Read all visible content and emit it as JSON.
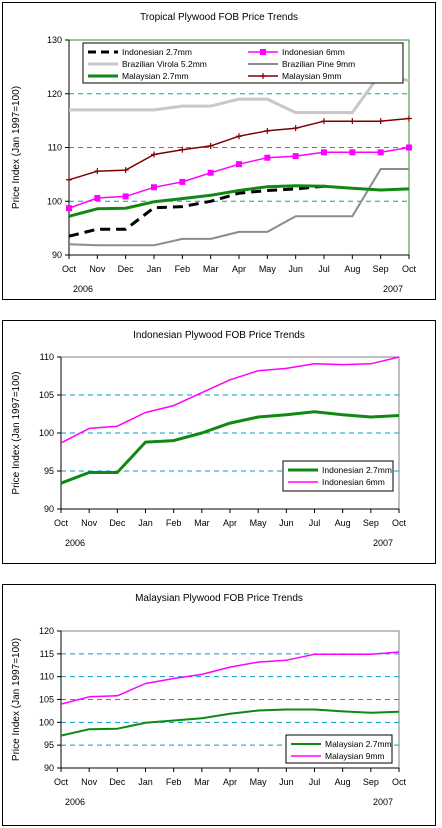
{
  "chart_data": [
    {
      "type": "line",
      "title": "Tropical Plywood FOB Price Trends",
      "ylabel": "Price Index (Jan 1997=100)",
      "xlabel": "",
      "x": [
        "Oct",
        "Nov",
        "Dec",
        "Jan",
        "Feb",
        "Mar",
        "Apr",
        "May",
        "Jun",
        "Jul",
        "Aug",
        "Sep",
        "Oct"
      ],
      "year_labels": [
        "2006",
        "2007"
      ],
      "ylim": [
        90,
        130
      ],
      "yticks": [
        90,
        100,
        110,
        120,
        130
      ],
      "grid": "dashed horizontal",
      "legend_position": "top",
      "plot_background": "#ffffff",
      "plot_border_color": "#2e8b2e",
      "series": [
        {
          "name": "Indonesian 2.7mm",
          "color": "#000000",
          "style": "dashed",
          "width": 3,
          "marker": "none",
          "values": [
            93.5,
            94.8,
            94.8,
            98.8,
            99.0,
            100.0,
            101.5,
            102.0,
            102.3,
            102.8,
            null,
            null,
            null
          ]
        },
        {
          "name": "Indonesian 6mm",
          "color": "#ff00ff",
          "style": "solid",
          "width": 1.5,
          "marker": "square",
          "values": [
            98.7,
            100.6,
            100.9,
            102.6,
            103.6,
            105.3,
            106.9,
            108.1,
            108.4,
            109.1,
            109.1,
            109.1,
            110.0
          ]
        },
        {
          "name": "Brazilian Virola 5.2mm",
          "color": "#c8c8c8",
          "style": "solid",
          "width": 3,
          "marker": "none",
          "values": [
            117.0,
            117.0,
            117.0,
            117.0,
            117.7,
            117.7,
            119.0,
            119.0,
            116.5,
            116.5,
            116.5,
            123.8,
            122.4
          ]
        },
        {
          "name": "Brazilian Pine 9mm",
          "color": "#8c8c8c",
          "style": "solid",
          "width": 2,
          "marker": "none",
          "values": [
            92.0,
            91.8,
            91.8,
            91.8,
            93.0,
            93.0,
            94.3,
            94.3,
            97.2,
            97.2,
            97.2,
            106.0,
            106.0
          ]
        },
        {
          "name": "Malaysian 2.7mm",
          "color": "#118811",
          "style": "solid",
          "width": 3,
          "marker": "none",
          "values": [
            97.2,
            98.6,
            98.7,
            99.9,
            100.5,
            101.1,
            102.0,
            102.7,
            102.9,
            102.8,
            102.4,
            102.1,
            102.3
          ]
        },
        {
          "name": "Malaysian 9mm",
          "color": "#800000",
          "style": "solid",
          "width": 1.5,
          "marker": "plus",
          "values": [
            104.0,
            105.6,
            105.8,
            108.7,
            109.6,
            110.3,
            112.1,
            113.1,
            113.6,
            114.9,
            114.9,
            114.9,
            115.4
          ]
        }
      ]
    },
    {
      "type": "line",
      "title": "Indonesian Plywood FOB Price Trends",
      "ylabel": "Price Index (Jan 1997=100)",
      "xlabel": "",
      "x": [
        "Oct",
        "Nov",
        "Dec",
        "Jan",
        "Feb",
        "Mar",
        "Apr",
        "May",
        "Jun",
        "Jul",
        "Aug",
        "Sep",
        "Oct"
      ],
      "year_labels": [
        "2006",
        "2007"
      ],
      "ylim": [
        90,
        110
      ],
      "yticks": [
        90,
        95,
        100,
        105,
        110
      ],
      "grid": "dashed horizontal",
      "legend_position": "bottom-right",
      "series": [
        {
          "name": "Indonesian 2.7mm",
          "color": "#118811",
          "width": 3,
          "values": [
            93.4,
            94.8,
            94.8,
            98.8,
            99.0,
            100.0,
            101.3,
            102.1,
            102.4,
            102.8,
            102.4,
            102.1,
            102.3
          ]
        },
        {
          "name": "Indonesian 6mm",
          "color": "#ff00ff",
          "width": 1.5,
          "values": [
            98.7,
            100.6,
            100.9,
            102.7,
            103.6,
            105.3,
            107.0,
            108.2,
            108.5,
            109.1,
            109.0,
            109.1,
            110.0
          ]
        }
      ]
    },
    {
      "type": "line",
      "title": "Malaysian Plywood FOB Price Trends",
      "ylabel": "Price Index (Jan 1997=100)",
      "xlabel": "",
      "x": [
        "Oct",
        "Nov",
        "Dec",
        "Jan",
        "Feb",
        "Mar",
        "Apr",
        "May",
        "Jun",
        "Jul",
        "Aug",
        "Sep",
        "Oct"
      ],
      "year_labels": [
        "2006",
        "2007"
      ],
      "ylim": [
        90,
        120
      ],
      "yticks": [
        90,
        95,
        100,
        105,
        110,
        115,
        120
      ],
      "grid": "dashed horizontal",
      "legend_position": "bottom-right",
      "series": [
        {
          "name": "Malaysian 2.7mm",
          "color": "#118811",
          "width": 2,
          "values": [
            97.1,
            98.5,
            98.6,
            99.9,
            100.4,
            100.9,
            101.9,
            102.6,
            102.8,
            102.8,
            102.4,
            102.1,
            102.3
          ]
        },
        {
          "name": "Malaysian 9mm",
          "color": "#ff00ff",
          "width": 1.5,
          "values": [
            104.0,
            105.6,
            105.8,
            108.5,
            109.6,
            110.5,
            112.1,
            113.2,
            113.6,
            114.9,
            114.9,
            114.9,
            115.4
          ]
        }
      ]
    }
  ]
}
